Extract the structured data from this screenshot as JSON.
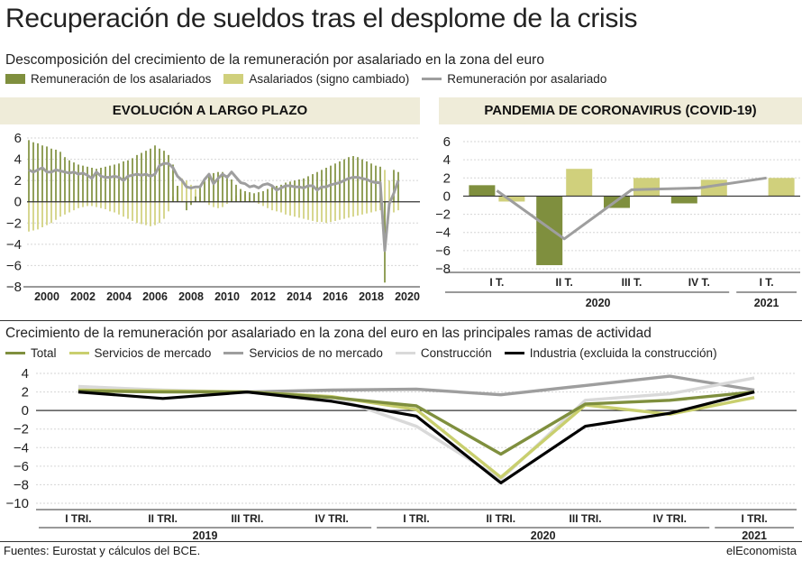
{
  "title": "Recuperación de sueldos tras el desplome de la crisis",
  "top": {
    "subtitle": "Descomposición del crecimiento de la remuneración por asalariado en la zona del euro",
    "legend": [
      {
        "label": "Remuneración de los asalariados",
        "color": "#7f8f3e",
        "kind": "box"
      },
      {
        "label": "Asalariados (signo cambiado)",
        "color": "#d0d07c",
        "kind": "box"
      },
      {
        "label": "Remuneración por asalariado",
        "color": "#9e9e9e",
        "kind": "line"
      }
    ],
    "left_banner": "EVOLUCIÓN A LARGO PLAZO",
    "right_banner": "PANDEMIA DE CORONAVIRUS (COVID-19)"
  },
  "bottom": {
    "subtitle": "Crecimiento de la remuneración por asalariado en la zona del euro en las principales ramas de actividad",
    "legend": [
      {
        "label": "Total",
        "color": "#7f8f3e"
      },
      {
        "label": "Servicios de mercado",
        "color": "#c9cf6e"
      },
      {
        "label": "Servicios de no mercado",
        "color": "#9e9e9e"
      },
      {
        "label": "Construcción",
        "color": "#d9d9d9"
      },
      {
        "label": "Industria (excluida la construcción)",
        "color": "#000000"
      }
    ]
  },
  "footer": {
    "source": "Fuentes: Eurostat y cálculos del BCE.",
    "brand": "elEconomista"
  },
  "chart_data": [
    {
      "id": "long_term",
      "type": "bar",
      "title": "EVOLUCIÓN A LARGO PLAZO",
      "ylim": [
        -8,
        6
      ],
      "yticks": [
        6,
        4,
        2,
        0,
        -2,
        -4,
        -6,
        -8
      ],
      "xticks": [
        "2000",
        "2002",
        "2004",
        "2006",
        "2008",
        "2010",
        "2012",
        "2014",
        "2016",
        "2018",
        "2020"
      ],
      "x_start": 1999.0,
      "x_step": 0.25,
      "series": [
        {
          "name": "Remuneración de los asalariados",
          "color": "#7f8f3e",
          "kind": "bar",
          "values": [
            5.8,
            5.6,
            5.5,
            5.3,
            5.2,
            5.0,
            4.9,
            4.7,
            4.2,
            3.9,
            3.7,
            3.5,
            3.4,
            3.3,
            3.2,
            3.1,
            3.2,
            3.3,
            3.4,
            3.5,
            3.6,
            3.8,
            3.9,
            4.1,
            4.4,
            4.6,
            4.8,
            5.0,
            5.3,
            5.0,
            4.8,
            4.4,
            3.5,
            1.5,
            0.0,
            -0.8,
            -0.3,
            0.5,
            1.5,
            2.0,
            2.5,
            2.7,
            2.8,
            2.8,
            2.5,
            2.1,
            1.6,
            1.2,
            1.0,
            0.9,
            0.8,
            0.9,
            1.0,
            1.2,
            1.4,
            1.5,
            1.6,
            1.8,
            1.9,
            2.0,
            2.1,
            2.2,
            2.4,
            2.6,
            2.8,
            3.0,
            3.2,
            3.4,
            3.6,
            3.8,
            4.0,
            4.2,
            4.3,
            4.2,
            4.0,
            3.8,
            3.6,
            3.4,
            3.3,
            -7.6,
            -0.5,
            3.0,
            2.8
          ]
        },
        {
          "name": "Asalariados (signo cambiado)",
          "color": "#d0d07c",
          "kind": "bar",
          "values": [
            -2.8,
            -2.7,
            -2.6,
            -2.4,
            -2.2,
            -2.0,
            -1.7,
            -1.4,
            -1.2,
            -1.0,
            -0.8,
            -0.6,
            -0.5,
            -0.4,
            -0.4,
            -0.5,
            -0.6,
            -0.7,
            -0.9,
            -1.0,
            -1.2,
            -1.4,
            -1.6,
            -1.8,
            -2.0,
            -2.1,
            -2.2,
            -2.3,
            -2.2,
            -2.0,
            -1.6,
            -0.9,
            0.5,
            1.5,
            2.2,
            2.0,
            1.6,
            1.2,
            0.5,
            0.0,
            -0.3,
            -0.5,
            -0.6,
            -0.5,
            -0.2,
            0.3,
            0.6,
            0.8,
            0.7,
            0.4,
            0.1,
            -0.2,
            -0.4,
            -0.6,
            -0.8,
            -0.9,
            -1.0,
            -1.2,
            -1.3,
            -1.4,
            -1.5,
            -1.6,
            -1.7,
            -1.8,
            -1.9,
            -1.9,
            -2.0,
            -1.9,
            -1.8,
            -1.7,
            -1.6,
            -1.5,
            -1.4,
            -1.3,
            -1.2,
            -1.1,
            -1.0,
            -0.9,
            -0.8,
            3.0,
            2.0,
            -1.0,
            -0.8
          ]
        },
        {
          "name": "Remuneración por asalariado",
          "color": "#9e9e9e",
          "kind": "line",
          "values": [
            3.0,
            2.8,
            3.0,
            3.2,
            2.8,
            2.8,
            3.0,
            2.9,
            2.8,
            2.7,
            2.8,
            2.6,
            2.7,
            2.5,
            2.2,
            2.8,
            2.4,
            2.3,
            2.3,
            2.4,
            2.3,
            2.0,
            2.4,
            2.5,
            2.6,
            2.5,
            2.6,
            2.4,
            2.6,
            3.4,
            3.6,
            3.6,
            3.2,
            2.4,
            2.0,
            1.4,
            1.3,
            1.4,
            1.4,
            2.1,
            2.6,
            1.7,
            2.2,
            2.6,
            2.3,
            2.8,
            2.3,
            1.8,
            1.7,
            1.4,
            1.5,
            1.3,
            1.6,
            1.7,
            1.5,
            1.1,
            1.3,
            1.5,
            1.5,
            1.4,
            1.4,
            1.3,
            1.5,
            1.5,
            1.1,
            1.4,
            1.4,
            1.6,
            1.7,
            1.8,
            2.0,
            2.2,
            2.3,
            2.3,
            2.2,
            2.1,
            1.9,
            1.8,
            1.8,
            -4.6,
            -0.2,
            0.8,
            2.0
          ]
        }
      ]
    },
    {
      "id": "covid",
      "type": "bar",
      "title": "PANDEMIA DE CORONAVIRUS (COVID-19)",
      "ylim": [
        -8,
        6
      ],
      "yticks": [
        6,
        4,
        2,
        0,
        -2,
        -4,
        -6,
        -8
      ],
      "categories": [
        "I T.",
        "II T.",
        "III T.",
        "IV T.",
        "I T."
      ],
      "year_groups": [
        {
          "label": "2020",
          "from": 0,
          "to": 3
        },
        {
          "label": "2021",
          "from": 4,
          "to": 4
        }
      ],
      "series": [
        {
          "name": "Remuneración de los asalariados",
          "color": "#7f8f3e",
          "kind": "bar",
          "values": [
            1.2,
            -7.6,
            -1.3,
            -0.8,
            0.0
          ]
        },
        {
          "name": "Asalariados (signo cambiado)",
          "color": "#d0d07c",
          "kind": "bar",
          "values": [
            -0.6,
            3.0,
            2.0,
            1.8,
            2.0
          ]
        },
        {
          "name": "Remuneración por asalariado",
          "color": "#9e9e9e",
          "kind": "line",
          "values": [
            0.6,
            -4.7,
            0.7,
            0.9,
            2.0
          ]
        }
      ]
    },
    {
      "id": "sectors",
      "type": "line",
      "title": "Crecimiento de la remuneración por asalariado en la zona del euro en las principales ramas de actividad",
      "ylim": [
        -10,
        4
      ],
      "yticks": [
        4,
        2,
        0,
        -2,
        -4,
        -6,
        -8,
        -10
      ],
      "categories": [
        "I TRI.",
        "II TRI.",
        "III TRI.",
        "IV TRI.",
        "I TRI.",
        "II TRI.",
        "III TRI.",
        "IV TRI.",
        "I TRI."
      ],
      "year_groups": [
        {
          "label": "2019",
          "from": 0,
          "to": 3
        },
        {
          "label": "2020",
          "from": 4,
          "to": 7
        },
        {
          "label": "2021",
          "from": 8,
          "to": 8
        }
      ],
      "series": [
        {
          "name": "Servicios de no mercado",
          "color": "#9e9e9e",
          "values": [
            2.2,
            2.1,
            2.0,
            2.2,
            2.3,
            1.7,
            2.7,
            3.7,
            2.2
          ]
        },
        {
          "name": "Construcción",
          "color": "#d9d9d9",
          "values": [
            2.6,
            2.2,
            2.0,
            1.5,
            -1.7,
            -7.4,
            1.1,
            1.8,
            3.5
          ]
        },
        {
          "name": "Servicios de mercado",
          "color": "#c9cf6e",
          "values": [
            2.2,
            2.1,
            2.0,
            1.5,
            0.1,
            -7.2,
            0.6,
            -0.4,
            1.4
          ]
        },
        {
          "name": "Total",
          "color": "#7f8f3e",
          "values": [
            2.1,
            2.0,
            2.0,
            1.4,
            0.5,
            -4.7,
            0.7,
            1.1,
            2.0
          ]
        },
        {
          "name": "Industria (excluida la construcción)",
          "color": "#000000",
          "values": [
            2.0,
            1.3,
            2.0,
            1.0,
            -0.6,
            -7.8,
            -1.7,
            -0.3,
            2.0
          ]
        }
      ]
    }
  ]
}
